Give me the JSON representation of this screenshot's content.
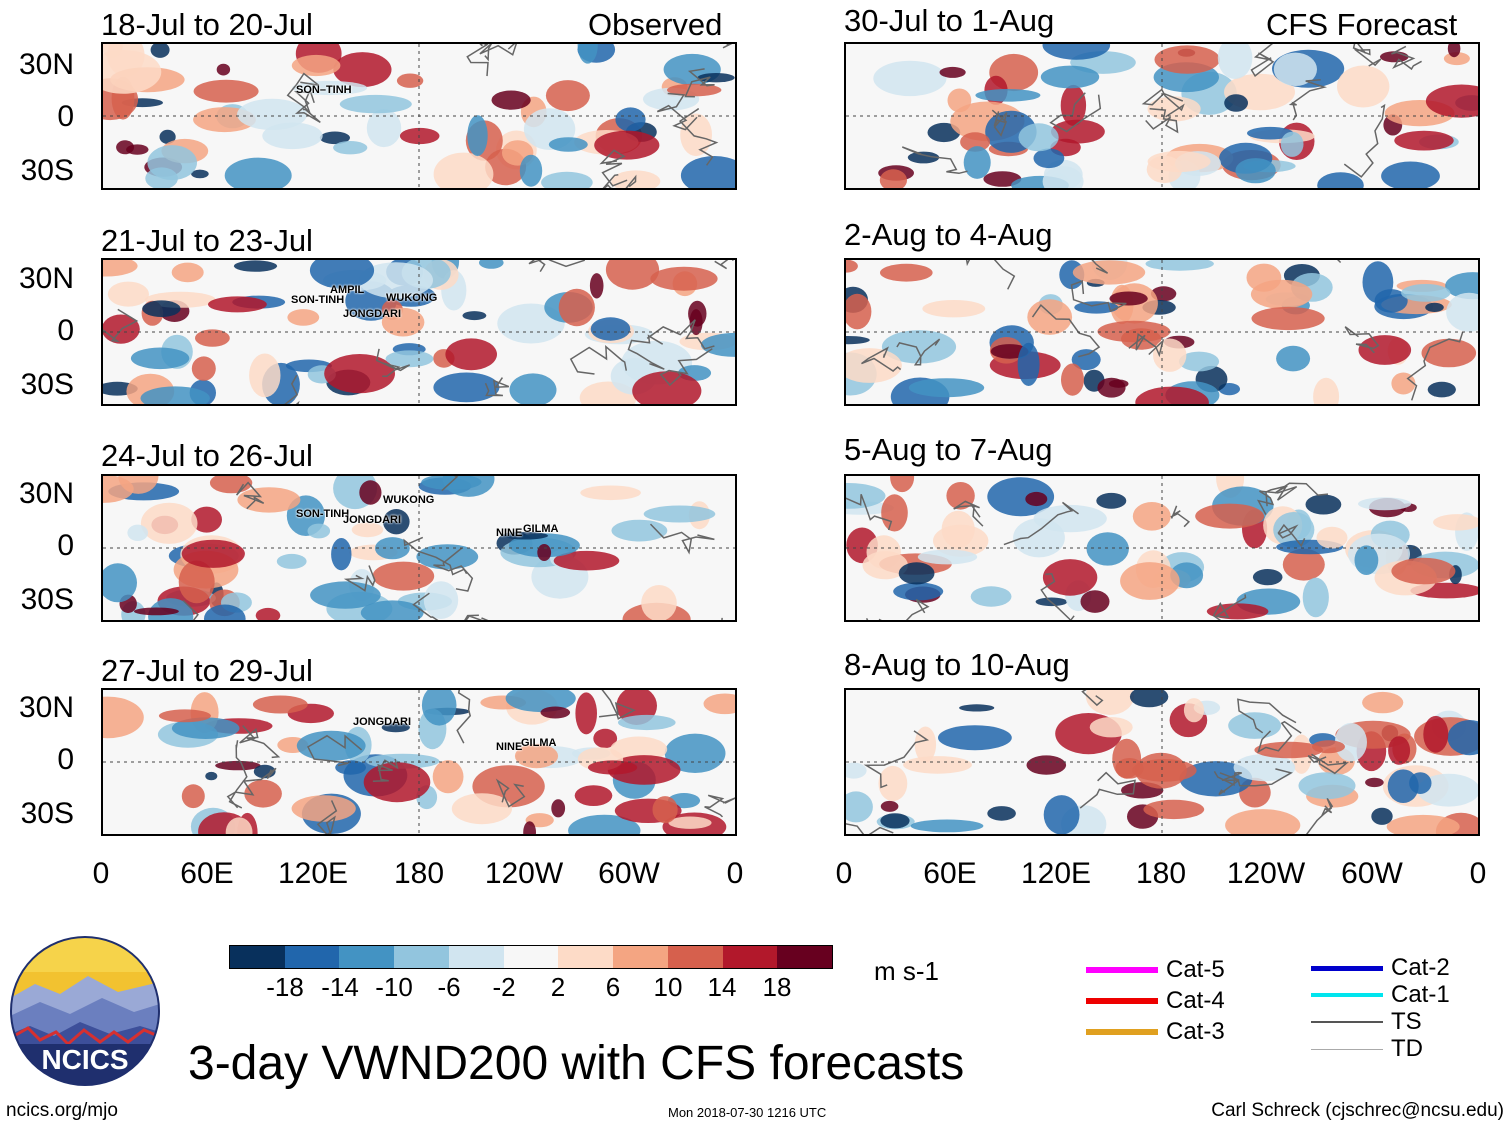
{
  "panels": [
    {
      "title": "18-Jul to 20-Jul",
      "tag": "Observed",
      "storms": [
        "SON-TINH"
      ]
    },
    {
      "title": "21-Jul to 23-Jul",
      "tag": "",
      "storms": [
        "AMPIL",
        "SON-TINH",
        "WUKONG",
        "JONGDARI"
      ]
    },
    {
      "title": "24-Jul to 26-Jul",
      "tag": "",
      "storms": [
        "WUKONG",
        "SON-TINH",
        "JONGDARI",
        "NINE",
        "GILMA"
      ]
    },
    {
      "title": "27-Jul to 29-Jul",
      "tag": "",
      "storms": [
        "JONGDARI",
        "NINE",
        "GILMA"
      ]
    },
    {
      "title": "30-Jul to 1-Aug",
      "tag": "CFS Forecast",
      "storms": []
    },
    {
      "title": "2-Aug to 4-Aug",
      "tag": "",
      "storms": []
    },
    {
      "title": "5-Aug to 7-Aug",
      "tag": "",
      "storms": []
    },
    {
      "title": "8-Aug to 10-Aug",
      "tag": "",
      "storms": []
    }
  ],
  "storm_labels": {
    "p0": [
      "SON–TINH"
    ],
    "p1": [
      "AMPIL",
      "SON-TINH",
      "WUKONG",
      "JONGDARI"
    ],
    "p2": [
      "WUKONG",
      "SON-TINH",
      "JONGDARI",
      "NINE",
      "GILMA"
    ],
    "p3": [
      "JONGDARI",
      "NINE",
      "GILMA"
    ]
  },
  "y_ticks": [
    "30N",
    "0",
    "30S"
  ],
  "x_ticks": [
    "0",
    "60E",
    "120E",
    "180",
    "120W",
    "60W",
    "0"
  ],
  "colorbar": {
    "colors": [
      "#08305c",
      "#2166ac",
      "#4393c3",
      "#92c5de",
      "#d1e5f0",
      "#f7f7f7",
      "#fddbc7",
      "#f4a582",
      "#d6604d",
      "#b2182b",
      "#67001f"
    ],
    "labels": [
      "-18",
      "-14",
      "-10",
      "-6",
      "-2",
      "2",
      "6",
      "10",
      "14",
      "18"
    ],
    "units": "m s-1"
  },
  "legend": [
    {
      "label": "Cat-5",
      "color": "#ff00ff"
    },
    {
      "label": "Cat-4",
      "color": "#ee0000"
    },
    {
      "label": "Cat-3",
      "color": "#e0a020"
    },
    {
      "label": "Cat-2",
      "color": "#0000cc"
    },
    {
      "label": "Cat-1",
      "color": "#00e5ee"
    },
    {
      "label": "TS",
      "color": "#555555"
    },
    {
      "label": "TD",
      "color": "#aaaaaa"
    }
  ],
  "logo_text": "NCICS",
  "main_title": "3-day VWND200 with CFS forecasts",
  "footer": {
    "url": "ncics.org/mjo",
    "timestamp": "Mon 2018-07-30 1216 UTC",
    "author": "Carl Schreck (cjschrec@ncsu.edu)"
  }
}
